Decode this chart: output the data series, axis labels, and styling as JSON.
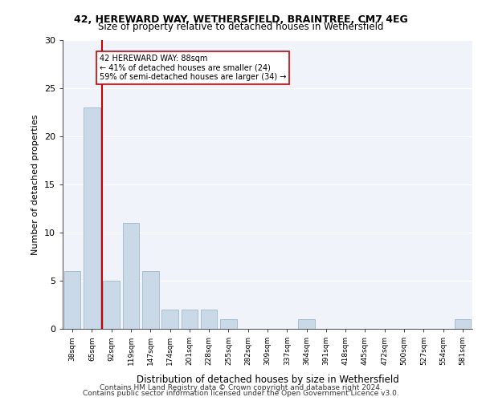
{
  "title1": "42, HEREWARD WAY, WETHERSFIELD, BRAINTREE, CM7 4EG",
  "title2": "Size of property relative to detached houses in Wethersfield",
  "xlabel": "Distribution of detached houses by size in Wethersfield",
  "ylabel": "Number of detached properties",
  "categories": [
    "38sqm",
    "65sqm",
    "92sqm",
    "119sqm",
    "147sqm",
    "174sqm",
    "201sqm",
    "228sqm",
    "255sqm",
    "282sqm",
    "309sqm",
    "337sqm",
    "364sqm",
    "391sqm",
    "418sqm",
    "445sqm",
    "472sqm",
    "500sqm",
    "527sqm",
    "554sqm",
    "581sqm"
  ],
  "values": [
    6,
    23,
    5,
    11,
    6,
    2,
    2,
    2,
    1,
    0,
    0,
    0,
    1,
    0,
    0,
    0,
    0,
    0,
    0,
    0,
    1
  ],
  "bar_color": "#c9d9e8",
  "bar_edgecolor": "#a0b8cc",
  "vline_x": 1.5,
  "vline_color": "#cc0000",
  "annotation_text": "42 HEREWARD WAY: 88sqm\n← 41% of detached houses are smaller (24)\n59% of semi-detached houses are larger (34) →",
  "annotation_box_edgecolor": "#cc0000",
  "ylim": [
    0,
    30
  ],
  "yticks": [
    0,
    5,
    10,
    15,
    20,
    25,
    30
  ],
  "footer1": "Contains HM Land Registry data © Crown copyright and database right 2024.",
  "footer2": "Contains public sector information licensed under the Open Government Licence v3.0.",
  "bg_color": "#f0f4fa",
  "grid_color": "#ffffff"
}
